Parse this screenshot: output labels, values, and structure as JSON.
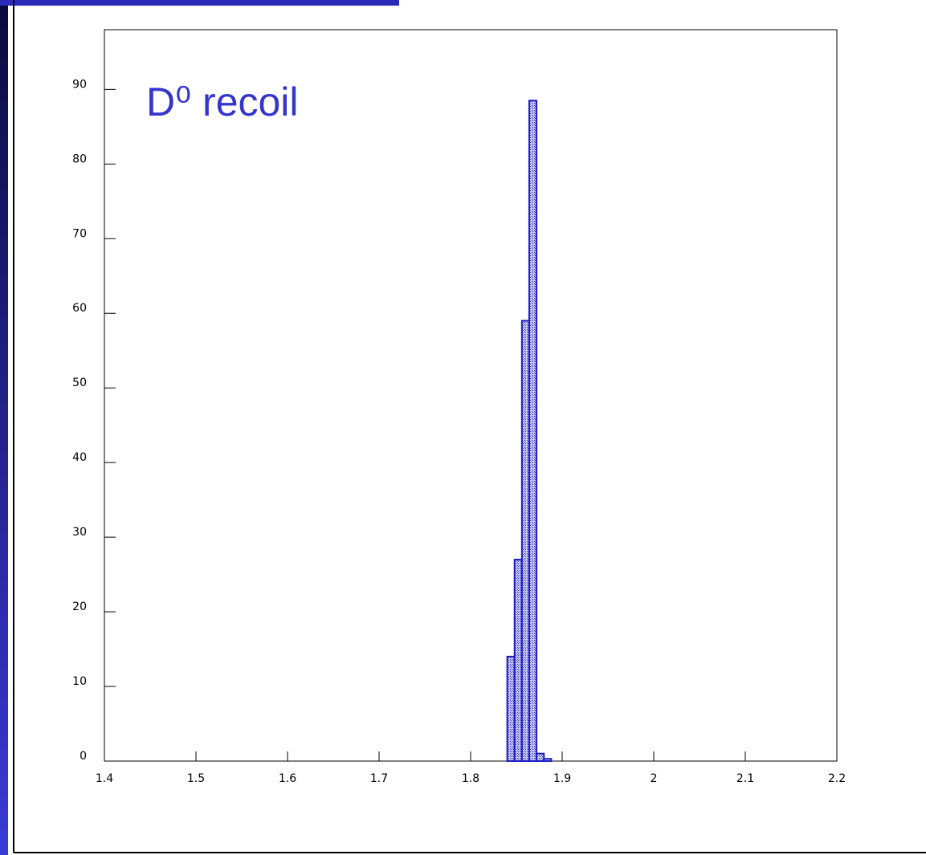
{
  "chart_data": {
    "type": "histogram",
    "title": "D⁰ recoil",
    "bins": [
      1.84,
      1.848,
      1.856,
      1.864,
      1.872,
      1.88,
      1.888
    ],
    "values": [
      14,
      27,
      59,
      88.5,
      1,
      0.3
    ],
    "color": "#1c1cc8",
    "xlim": [
      1.4,
      2.2
    ],
    "xticks": [
      1.4,
      1.5,
      1.6,
      1.7,
      1.8,
      1.9,
      2,
      2.1,
      2.2
    ],
    "ylim": [
      0,
      98
    ],
    "yticks": [
      0,
      10,
      20,
      30,
      40,
      50,
      60,
      70,
      80,
      90
    ]
  }
}
